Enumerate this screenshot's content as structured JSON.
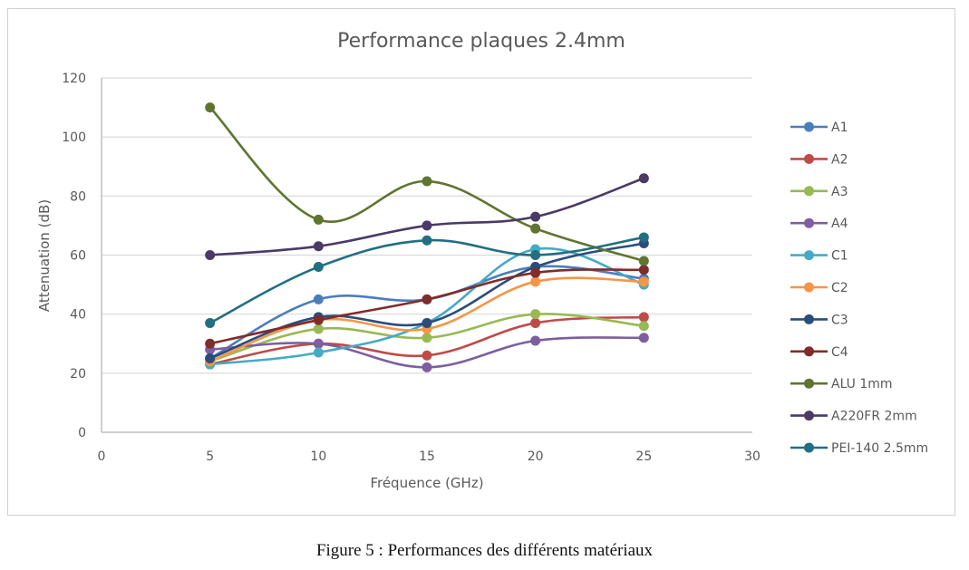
{
  "chart_data": {
    "type": "line",
    "title": "Performance plaques 2.4mm",
    "xlabel": "Fréquence (GHz)",
    "ylabel": "Attenuation (dB)",
    "xlim": [
      0,
      30
    ],
    "ylim": [
      0,
      120
    ],
    "xticks": [
      0,
      5,
      10,
      15,
      20,
      25,
      30
    ],
    "yticks": [
      0,
      20,
      40,
      60,
      80,
      100,
      120
    ],
    "grid": "horizontal",
    "legend_position": "right",
    "smooth": true,
    "x": [
      5,
      10,
      15,
      20,
      25
    ],
    "series": [
      {
        "name": "A1",
        "color": "#4a7ebb",
        "values": [
          25,
          45,
          45,
          56,
          52
        ]
      },
      {
        "name": "A2",
        "color": "#be4b48",
        "values": [
          23,
          30,
          26,
          37,
          39
        ]
      },
      {
        "name": "A3",
        "color": "#98b954",
        "values": [
          24,
          35,
          32,
          40,
          36
        ]
      },
      {
        "name": "A4",
        "color": "#7d5fa0",
        "values": [
          28,
          30,
          22,
          31,
          32
        ]
      },
      {
        "name": "C1",
        "color": "#46aac5",
        "values": [
          23,
          27,
          37,
          62,
          50
        ]
      },
      {
        "name": "C2",
        "color": "#f59646",
        "values": [
          24,
          38,
          35,
          51,
          51
        ]
      },
      {
        "name": "C3",
        "color": "#2b4d7c",
        "values": [
          25,
          39,
          37,
          56,
          64
        ]
      },
      {
        "name": "C4",
        "color": "#7f2d2b",
        "values": [
          30,
          38,
          45,
          54,
          55
        ]
      },
      {
        "name": "ALU 1mm",
        "color": "#5f7530",
        "values": [
          110,
          72,
          85,
          69,
          58
        ]
      },
      {
        "name": "A220FR 2mm",
        "color": "#4b3a67",
        "values": [
          60,
          63,
          70,
          73,
          86
        ]
      },
      {
        "name": "PEI-140 2.5mm",
        "color": "#216f80",
        "values": [
          37,
          56,
          65,
          60,
          66
        ]
      }
    ]
  },
  "caption": "Figure 5 : Performances des différents matériaux"
}
